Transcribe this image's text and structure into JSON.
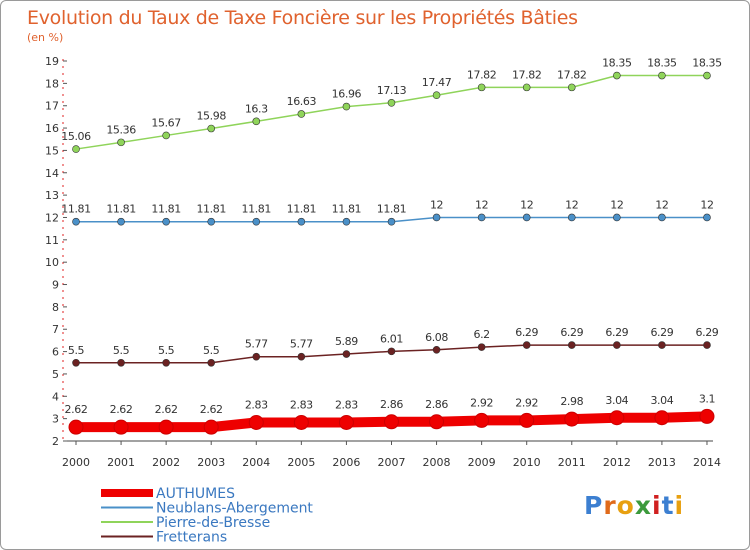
{
  "chart_data": {
    "type": "line",
    "title": "Evolution du Taux de Taxe Foncière sur les Propriétés Bâties",
    "subtitle": "(en %)",
    "xlabel": "",
    "ylabel": "",
    "ylim": [
      2,
      19
    ],
    "grid": false,
    "x": [
      "2000",
      "2001",
      "2002",
      "2003",
      "2004",
      "2005",
      "2006",
      "2007",
      "2008",
      "2009",
      "2010",
      "2011",
      "2012",
      "2013",
      "2014"
    ],
    "y_ticks": [
      "2",
      "3",
      "4",
      "5",
      "6",
      "7",
      "8",
      "9",
      "10",
      "11",
      "12",
      "13",
      "14",
      "15",
      "16",
      "17",
      "18",
      "19"
    ],
    "legend_position": "bottom-left",
    "series": [
      {
        "name": "AUTHUMES",
        "color": "#ee0000",
        "values": [
          2.62,
          2.62,
          2.62,
          2.62,
          2.83,
          2.83,
          2.83,
          2.86,
          2.86,
          2.92,
          2.92,
          2.98,
          3.04,
          3.04,
          3.1
        ],
        "labels": [
          "2.62",
          "2.62",
          "2.62",
          "2.62",
          "2.83",
          "2.83",
          "2.83",
          "2.86",
          "2.86",
          "2.92",
          "2.92",
          "2.98",
          "3.04",
          "3.04",
          "3.1"
        ]
      },
      {
        "name": "Neublans-Abergement",
        "color": "#4a90c8",
        "values": [
          11.81,
          11.81,
          11.81,
          11.81,
          11.81,
          11.81,
          11.81,
          11.81,
          12,
          12,
          12,
          12,
          12,
          12,
          12
        ],
        "labels": [
          "11.81",
          "11.81",
          "11.81",
          "11.81",
          "11.81",
          "11.81",
          "11.81",
          "11.81",
          "12",
          "12",
          "12",
          "12",
          "12",
          "12",
          "12"
        ]
      },
      {
        "name": "Pierre-de-Bresse",
        "color": "#8fd45a",
        "values": [
          15.06,
          15.36,
          15.67,
          15.98,
          16.3,
          16.63,
          16.96,
          17.13,
          17.47,
          17.82,
          17.82,
          17.82,
          18.35,
          18.35,
          18.35
        ],
        "labels": [
          "15.06",
          "15.36",
          "15.67",
          "15.98",
          "16.3",
          "16.63",
          "16.96",
          "17.13",
          "17.47",
          "17.82",
          "17.82",
          "17.82",
          "18.35",
          "18.35",
          "18.35"
        ]
      },
      {
        "name": "Fretterans",
        "color": "#6b2222",
        "values": [
          5.5,
          5.5,
          5.5,
          5.5,
          5.77,
          5.77,
          5.89,
          6.01,
          6.08,
          6.2,
          6.29,
          6.29,
          6.29,
          6.29,
          6.29
        ],
        "labels": [
          "5.5",
          "5.5",
          "5.5",
          "5.5",
          "5.77",
          "5.77",
          "5.89",
          "6.01",
          "6.08",
          "6.2",
          "6.29",
          "6.29",
          "6.29",
          "6.29",
          "6.29"
        ]
      }
    ]
  },
  "logo": {
    "text": "Proxiti"
  }
}
